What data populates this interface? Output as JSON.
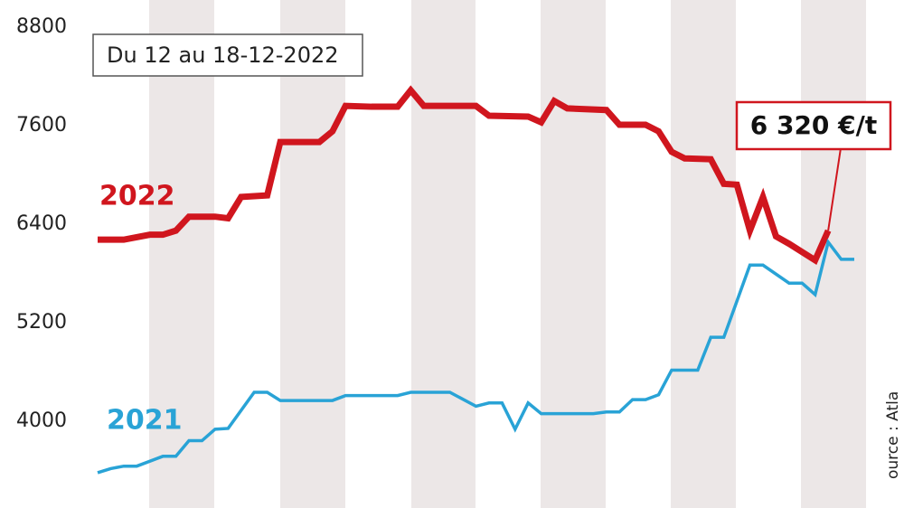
{
  "chart_data": {
    "type": "line",
    "subtitle": "Du 12 au 18-12-2022",
    "annotation": "6 320 €/t",
    "source": "ource : Atla",
    "xlim": [
      0,
      58
    ],
    "ylim": [
      2940,
      8800
    ],
    "yticks": [
      4000,
      5200,
      6400,
      7600,
      8800
    ],
    "series": [
      {
        "name": "2022",
        "color": "#d0161e",
        "x": [
          0,
          2,
          4,
          5,
          6,
          7,
          9,
          10,
          11,
          13,
          14,
          17,
          18,
          19,
          21,
          23,
          24,
          25,
          29,
          30,
          33,
          34,
          35,
          36,
          39,
          40,
          42,
          43,
          44,
          45,
          47,
          48,
          49,
          50,
          51,
          52,
          53,
          55,
          56
        ],
        "values": [
          6210,
          6210,
          6270,
          6270,
          6320,
          6490,
          6490,
          6470,
          6730,
          6750,
          7400,
          7400,
          7530,
          7840,
          7830,
          7830,
          8030,
          7840,
          7840,
          7720,
          7710,
          7640,
          7900,
          7810,
          7790,
          7610,
          7610,
          7530,
          7280,
          7200,
          7190,
          6890,
          6880,
          6320,
          6730,
          6250,
          6160,
          5960,
          6320
        ]
      },
      {
        "name": "2021",
        "color": "#29a3d6",
        "x": [
          0,
          1,
          2,
          3,
          5,
          6,
          7,
          8,
          9,
          10,
          12,
          13,
          14,
          18,
          19,
          23,
          24,
          27,
          29,
          30,
          31,
          32,
          33,
          34,
          38,
          39,
          40,
          41,
          42,
          43,
          44,
          46,
          47,
          48,
          49,
          50,
          51,
          53,
          54,
          55,
          56,
          57,
          58
        ],
        "values": [
          3370,
          3420,
          3450,
          3450,
          3570,
          3570,
          3760,
          3760,
          3900,
          3910,
          4350,
          4350,
          4250,
          4250,
          4310,
          4310,
          4350,
          4350,
          4180,
          4220,
          4220,
          3900,
          4220,
          4090,
          4090,
          4110,
          4110,
          4260,
          4260,
          4320,
          4620,
          4620,
          5020,
          5020,
          5460,
          5900,
          5900,
          5680,
          5680,
          5540,
          6180,
          5970,
          5970
        ]
      }
    ]
  }
}
